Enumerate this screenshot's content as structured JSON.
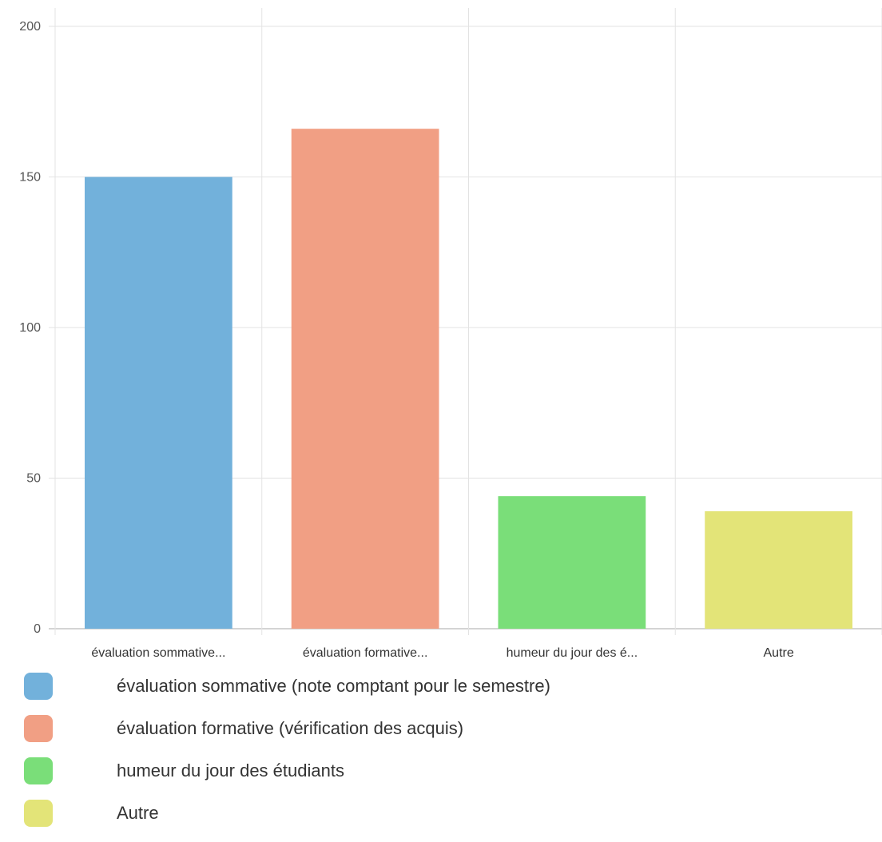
{
  "chart_data": {
    "type": "bar",
    "categories": [
      "évaluation sommative...",
      "évaluation formative...",
      "humeur du jour des é...",
      "Autre"
    ],
    "values": [
      150,
      166,
      44,
      39
    ],
    "colors": [
      "#72b1db",
      "#f19f84",
      "#7ade79",
      "#e3e478"
    ],
    "ylim": [
      0,
      200
    ],
    "yticks": [
      "0",
      "50",
      "100",
      "150",
      "200"
    ],
    "grid": true,
    "legend_position": "bottom",
    "legend": [
      "évaluation sommative (note comptant pour le semestre)",
      "évaluation formative (vérification des acquis)",
      "humeur du jour des étudiants",
      "Autre"
    ]
  }
}
